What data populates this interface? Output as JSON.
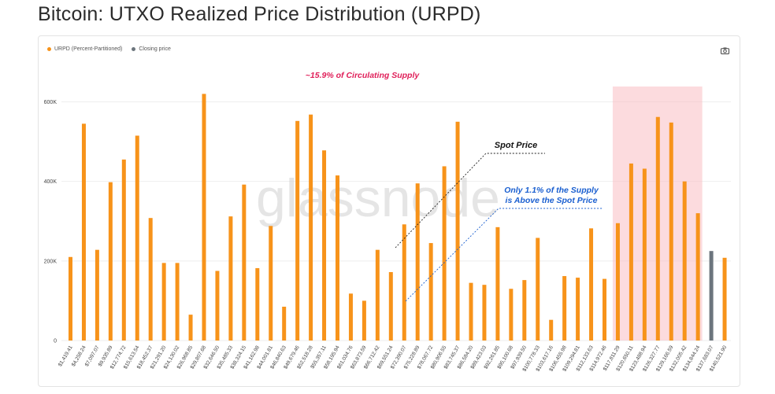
{
  "title": "Bitcoin: UTXO Realized Price Distribution (URPD)",
  "legend": {
    "urpd_label": "URPD (Percent-Partitioned)",
    "closing_label": "Closing price",
    "urpd_color": "#f7931a",
    "closing_color": "#6c757d"
  },
  "annotations": {
    "circulating": "~15.9% of Circulating Supply",
    "spot_price": "Spot Price",
    "above_line1": "Only 1.1% of the Supply",
    "above_line2": "is Above the Spot Price",
    "circulating_color": "#e0205a",
    "above_color": "#1a5fd0"
  },
  "watermark": "glassnode",
  "chart_data": {
    "type": "bar",
    "y_ticks": [
      "0",
      "200K",
      "400K",
      "600K"
    ],
    "ylim": [
      0,
      640000
    ],
    "tick_labels": [
      "$1,419.41",
      "$4,258.24",
      "$7,097.07",
      "$9,935.89",
      "$12,774.72",
      "$15,613.54",
      "$18,452.37",
      "$21,291.20",
      "$24,130.02",
      "$26,968.85",
      "$29,807.68",
      "$32,646.50",
      "$35,485.33",
      "$38,324.15",
      "$41,162.98",
      "$44,001.81",
      "$46,840.63",
      "$49,679.46",
      "$52,518.28",
      "$55,357.11",
      "$58,195.94",
      "$61,034.76",
      "$63,873.59",
      "$66,712.42",
      "$69,551.24",
      "$72,390.07",
      "$75,228.89",
      "$78,067.72",
      "$80,906.55",
      "$83,745.37",
      "$86,584.20",
      "$89,423.03",
      "$92,261.85",
      "$95,100.68",
      "$97,939.50",
      "$100,778.33",
      "$103,617.16",
      "$106,455.98",
      "$109,294.81",
      "$112,133.63",
      "$114,972.46",
      "$117,811.29",
      "$120,650.11",
      "$123,488.94",
      "$126,327.77",
      "$129,166.59",
      "$132,005.42",
      "$134,844.24",
      "$137,683.07",
      "$140,521.90"
    ],
    "values": [
      210000,
      545000,
      228000,
      398000,
      455000,
      515000,
      308000,
      195000,
      195000,
      65000,
      620000,
      175000,
      312000,
      392000,
      182000,
      288000,
      85000,
      552000,
      568000,
      478000,
      415000,
      118000,
      100000,
      228000,
      172000,
      292000,
      395000,
      245000,
      438000,
      550000,
      145000,
      140000,
      285000,
      130000,
      152000,
      258000,
      52000,
      162000,
      158000,
      282000,
      155000,
      295000,
      445000,
      432000,
      562000,
      548000,
      400000,
      320000,
      225000,
      208000
    ],
    "closing_index": 48,
    "highlight_range": [
      41,
      47
    ]
  }
}
